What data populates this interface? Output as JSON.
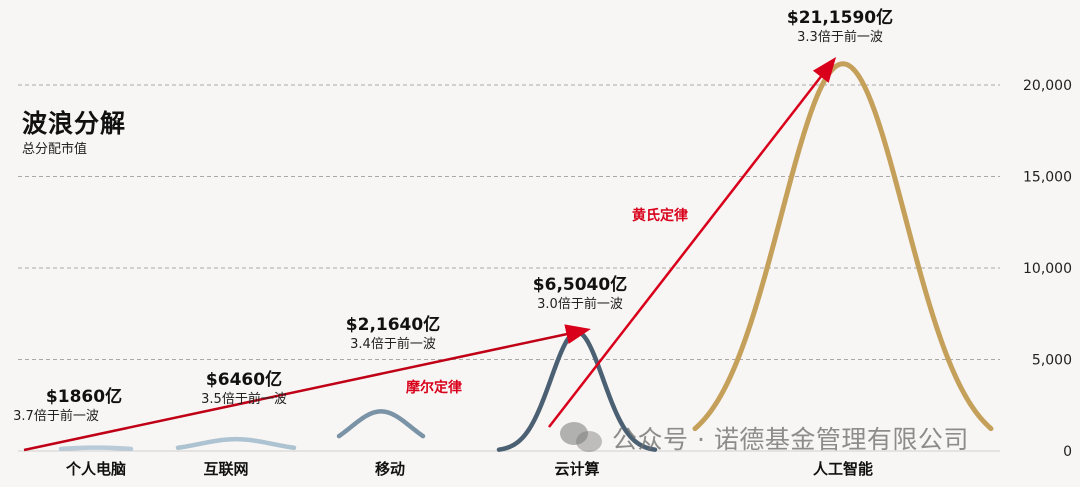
{
  "header": {
    "title": "波浪分解",
    "subtitle": "总分配市值"
  },
  "watermark": {
    "text": "公众号 · 诺德基金管理有限公司",
    "icon": "wechat-icon"
  },
  "annotations": {
    "moore": "摩尔定律",
    "huang": "黄氏定律"
  },
  "colors": {
    "pc": "#b9cbd9",
    "internet": "#aec3d2",
    "mobile": "#7b93a6",
    "cloud": "#4b6072",
    "ai": "#c5a05a",
    "arrow": "#d9001b",
    "grid": "#a9a9a9"
  },
  "chart_data": {
    "type": "area",
    "title": "波浪分解",
    "subtitle": "总分配市值",
    "ylabel": "",
    "xlabel": "",
    "ylim": [
      0,
      22000
    ],
    "yticks": [
      "0",
      "5,000",
      "10,000",
      "15,000",
      "20,000"
    ],
    "ytick_values": [
      0,
      5000,
      10000,
      15000,
      20000
    ],
    "y_axis_position": "right",
    "grid": "horizontal-dashed",
    "categories": [
      "个人电脑",
      "互联网",
      "移动",
      "云计算",
      "人工智能"
    ],
    "series": [
      {
        "category": "个人电脑",
        "peak": 186,
        "label": "$1860亿",
        "multiple": "3.7倍于前一波",
        "color": "#b9cbd9"
      },
      {
        "category": "互联网",
        "peak": 646,
        "label": "$6460亿",
        "multiple": "3.5倍于前一波",
        "color": "#aec3d2"
      },
      {
        "category": "移动",
        "peak": 2164,
        "label": "$2,1640亿",
        "multiple": "3.4倍于前一波",
        "color": "#7b93a6"
      },
      {
        "category": "云计算",
        "peak": 6504,
        "label": "$6,5040亿",
        "multiple": "3.0倍于前一波",
        "color": "#4b6072"
      },
      {
        "category": "人工智能",
        "peak": 21159,
        "label": "$21,1590亿",
        "multiple": "3.3倍于前一波",
        "color": "#c5a05a"
      }
    ],
    "annotations": [
      {
        "text": "摩尔定律",
        "from": "个人电脑",
        "to": "云计算"
      },
      {
        "text": "黄氏定律",
        "from": "云计算",
        "to": "人工智能"
      }
    ]
  }
}
